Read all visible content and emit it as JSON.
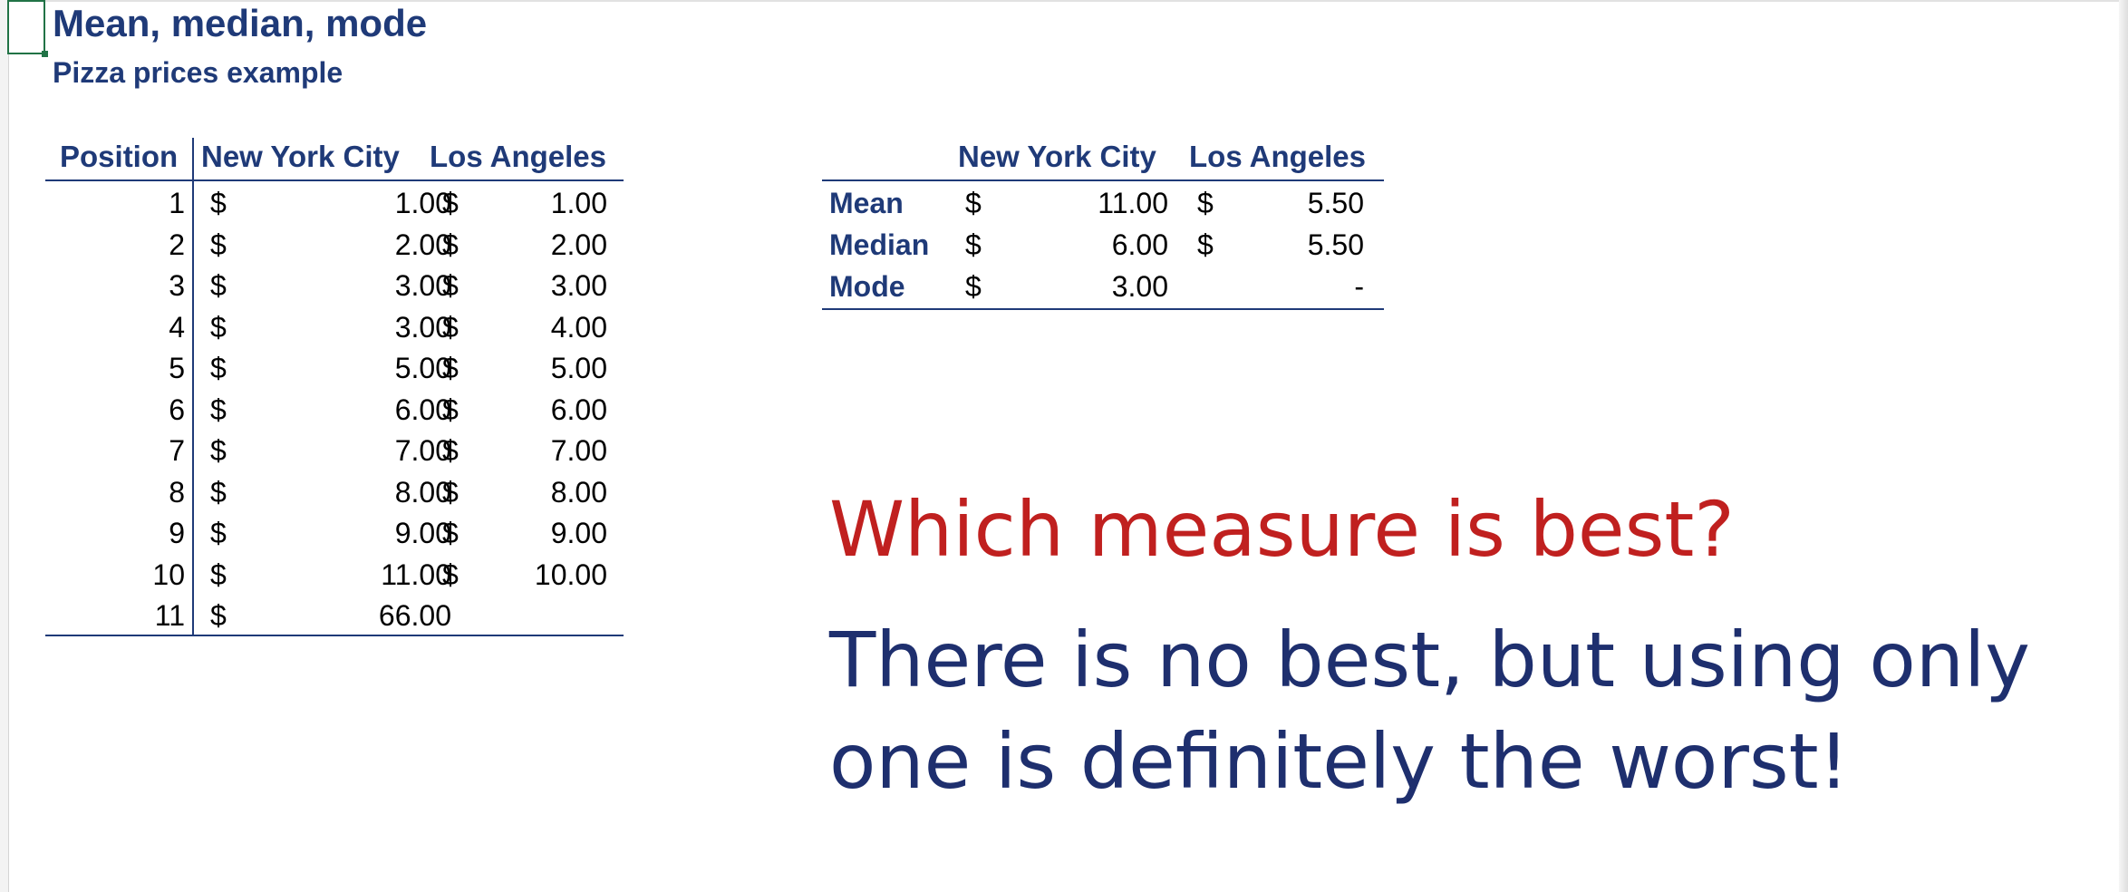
{
  "sheet": {
    "title": "Mean, median, mode",
    "subtitle": "Pizza prices example"
  },
  "prices_table": {
    "headers": [
      "Position",
      "New York City",
      "Los Angeles"
    ],
    "rows": [
      {
        "position": "1",
        "nyc_currency": "$",
        "nyc": "1.00",
        "la_currency": "$",
        "la": "1.00"
      },
      {
        "position": "2",
        "nyc_currency": "$",
        "nyc": "2.00",
        "la_currency": "$",
        "la": "2.00"
      },
      {
        "position": "3",
        "nyc_currency": "$",
        "nyc": "3.00",
        "la_currency": "$",
        "la": "3.00"
      },
      {
        "position": "4",
        "nyc_currency": "$",
        "nyc": "3.00",
        "la_currency": "$",
        "la": "4.00"
      },
      {
        "position": "5",
        "nyc_currency": "$",
        "nyc": "5.00",
        "la_currency": "$",
        "la": "5.00"
      },
      {
        "position": "6",
        "nyc_currency": "$",
        "nyc": "6.00",
        "la_currency": "$",
        "la": "6.00"
      },
      {
        "position": "7",
        "nyc_currency": "$",
        "nyc": "7.00",
        "la_currency": "$",
        "la": "7.00"
      },
      {
        "position": "8",
        "nyc_currency": "$",
        "nyc": "8.00",
        "la_currency": "$",
        "la": "8.00"
      },
      {
        "position": "9",
        "nyc_currency": "$",
        "nyc": "9.00",
        "la_currency": "$",
        "la": "9.00"
      },
      {
        "position": "10",
        "nyc_currency": "$",
        "nyc": "11.00",
        "la_currency": "$",
        "la": "10.00"
      },
      {
        "position": "11",
        "nyc_currency": "$",
        "nyc": "66.00",
        "la_currency": "",
        "la": ""
      }
    ]
  },
  "summary_table": {
    "headers": [
      "",
      "New York City",
      "Los Angeles"
    ],
    "rows": [
      {
        "label": "Mean",
        "nyc_currency": "$",
        "nyc": "11.00",
        "la_currency": "$",
        "la": "5.50"
      },
      {
        "label": "Median",
        "nyc_currency": "$",
        "nyc": "6.00",
        "la_currency": "$",
        "la": "5.50"
      },
      {
        "label": "Mode",
        "nyc_currency": "$",
        "nyc": "3.00",
        "la_currency": "",
        "la": "-"
      }
    ]
  },
  "overlay": {
    "question": "Which measure is best?",
    "answer": "There is no best, but using only one is definitely the worst!"
  },
  "colors": {
    "heading": "#1f3a78",
    "question": "#c0201f",
    "answer": "#1e2f6e",
    "cell_cursor": "#217346"
  }
}
